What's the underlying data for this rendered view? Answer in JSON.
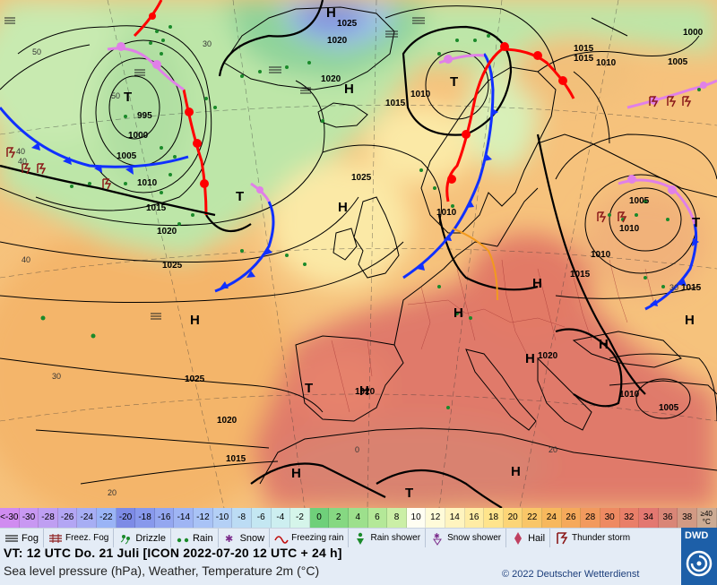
{
  "map": {
    "highs": [
      "H",
      "H",
      "H",
      "H",
      "H",
      "H",
      "H",
      "H",
      "H",
      "H",
      "H",
      "H"
    ],
    "lows": [
      "T",
      "T",
      "T",
      "T",
      "T",
      "T"
    ],
    "isobars": [
      "1025",
      "1020",
      "1020",
      "1010",
      "1015",
      "1015",
      "1010",
      "1005",
      "1000",
      "1005",
      "1010",
      "1015",
      "1020",
      "1025",
      "1025",
      "1020",
      "1025",
      "1020",
      "1015",
      "1010",
      "1015",
      "1010",
      "1005",
      "1000",
      "1010",
      "1020",
      "1015",
      "1010",
      "1005",
      "1015",
      "995"
    ],
    "temps": [
      "40",
      "30",
      "20",
      "40",
      "30",
      "50",
      "50",
      "20",
      "0",
      "40",
      "30"
    ],
    "colors": {
      "sea_warm": "#f5b870",
      "land_hot": "#e0786a",
      "cool": "#b9e3a8",
      "cold": "#9fc4ea",
      "very_cold": "#7f8fe0",
      "warm_front": "#ff0000",
      "cold_front": "#1030ff",
      "occluded": "#e080e8"
    }
  },
  "scale": {
    "cells": [
      {
        "label": "<-30",
        "color": "#d08cf0"
      },
      {
        "label": "-30",
        "color": "#c898f2"
      },
      {
        "label": "-28",
        "color": "#bf9ff2"
      },
      {
        "label": "-26",
        "color": "#b3a6f4"
      },
      {
        "label": "-24",
        "color": "#a7aef4"
      },
      {
        "label": "-22",
        "color": "#9ab4f6"
      },
      {
        "label": "-20",
        "color": "#7d8be6"
      },
      {
        "label": "-18",
        "color": "#8899ec"
      },
      {
        "label": "-16",
        "color": "#94a7f0"
      },
      {
        "label": "-14",
        "color": "#9fb5f4"
      },
      {
        "label": "-12",
        "color": "#a9c3f6"
      },
      {
        "label": "-10",
        "color": "#b4d0f6"
      },
      {
        "label": "-8",
        "color": "#bcdcf4"
      },
      {
        "label": "-6",
        "color": "#c4e7f2"
      },
      {
        "label": "-4",
        "color": "#cdeff0"
      },
      {
        "label": "-2",
        "color": "#d5f5ea"
      },
      {
        "label": "0",
        "color": "#6fd07a"
      },
      {
        "label": "2",
        "color": "#86d882"
      },
      {
        "label": "4",
        "color": "#9de08c"
      },
      {
        "label": "6",
        "color": "#b4e898"
      },
      {
        "label": "8",
        "color": "#cbefa6"
      },
      {
        "label": "10",
        "color": "#fffef2"
      },
      {
        "label": "12",
        "color": "#fffbd9"
      },
      {
        "label": "14",
        "color": "#fff4bf"
      },
      {
        "label": "16",
        "color": "#ffeca4"
      },
      {
        "label": "18",
        "color": "#ffe48c"
      },
      {
        "label": "20",
        "color": "#fcd577"
      },
      {
        "label": "22",
        "color": "#f9c668"
      },
      {
        "label": "24",
        "color": "#f7b85d"
      },
      {
        "label": "26",
        "color": "#f5a95b"
      },
      {
        "label": "28",
        "color": "#f29a5e"
      },
      {
        "label": "30",
        "color": "#ee8a62"
      },
      {
        "label": "32",
        "color": "#e97f69"
      },
      {
        "label": "34",
        "color": "#e37871"
      },
      {
        "label": "36",
        "color": "#d98677"
      },
      {
        "label": "38",
        "color": "#d29a84"
      },
      {
        "label": "≥40",
        "unit": "°C",
        "color": "#ccab94"
      }
    ]
  },
  "legend": {
    "fog": "Fog",
    "freez_fog": "Freez. Fog",
    "drizzle": "Drizzle",
    "rain": "Rain",
    "snow": "Snow",
    "freezing_rain": "Freezing rain",
    "rain_shower": "Rain shower",
    "snow_shower": "Snow shower",
    "hail": "Hail",
    "thunderstorm": "Thunder storm"
  },
  "info": {
    "valid_time": "VT: 12 UTC Do.  21 Juli [ICON 2022-07-20  12 UTC + 24 h]",
    "description": "Sea level pressure (hPa), Weather, Temperature 2m (°C)",
    "copyright": "© 2022 Deutscher Wetterdienst",
    "logo": "DWD"
  }
}
